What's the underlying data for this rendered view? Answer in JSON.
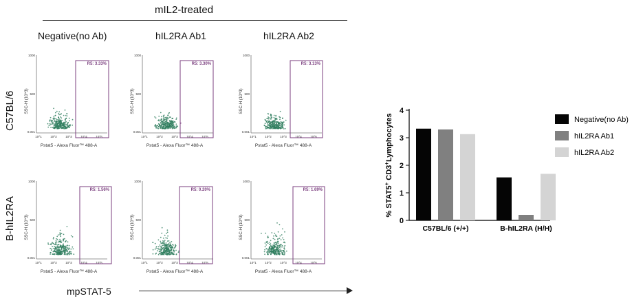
{
  "header": {
    "treatment_title": "mIL2-treated",
    "columns": [
      "Negative(no Ab)",
      "hIL2RA Ab1",
      "hIL2RA Ab2"
    ]
  },
  "rows": [
    "C57BL/6",
    "B-hIL2RA"
  ],
  "flow_plots": {
    "y_axis_label": "SSC-H (10^3)",
    "x_axis_label": "Pstat5 - Alexa Fluor™ 488-A",
    "y_ticks": [
      "1000",
      "500",
      "0.001"
    ],
    "x_ticks": [
      "10^1",
      "10^2",
      "10^3",
      "10^4",
      "10^5"
    ],
    "gates": [
      [
        "R5: 3.33%",
        "R5: 3.30%",
        "R5: 3.13%"
      ],
      [
        "R5: 1.56%",
        "R5: 0.20%",
        "R5: 1.69%"
      ]
    ],
    "dot_color": "#2e7d5e",
    "gate_color": "#7b3f7f"
  },
  "footer": {
    "x_label": "mpSTAT-5"
  },
  "chart_data": {
    "type": "bar",
    "categories": [
      "C57BL/6 (+/+)",
      "B-hIL2RA (H/H)"
    ],
    "series": [
      {
        "name": "Negative(no Ab)",
        "values": [
          3.33,
          1.56
        ],
        "color": "#050505"
      },
      {
        "name": "hIL2RA Ab1",
        "values": [
          3.3,
          0.2
        ],
        "color": "#808080"
      },
      {
        "name": "hIL2RA Ab2",
        "values": [
          3.13,
          1.69
        ],
        "color": "#d4d4d4"
      }
    ],
    "ylabel_parts": [
      "% STAT5",
      "+",
      " CD3",
      "+",
      "Lymphocytes"
    ],
    "ylim": [
      0,
      4
    ],
    "yticks": [
      "0",
      "1",
      "2",
      "3",
      "4"
    ],
    "legend_position": "right"
  }
}
